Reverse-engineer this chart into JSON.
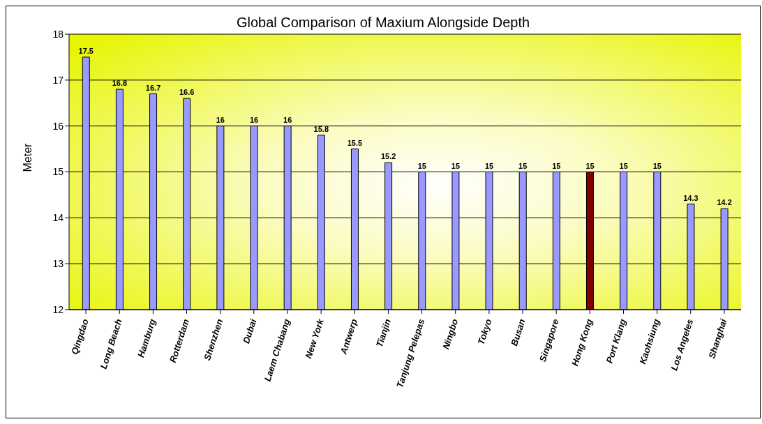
{
  "chart_data": {
    "type": "bar",
    "title": "Global Comparison of Maxium Alongside Depth",
    "ylabel": "Meter",
    "categories": [
      "Qingdao",
      "Long Beach",
      "Hamburg",
      "Rotterdam",
      "Shenzhen",
      "Dubai",
      "Laem Chabang",
      "New York",
      "Antwerp",
      "Tianjin",
      "Tanjung Pelepas",
      "Ningbo",
      "Tokyo",
      "Busan",
      "Singapore",
      "Hong Kong",
      "Port Klang",
      "Kaohsiung",
      "Los Angeles",
      "Shanghai"
    ],
    "values": [
      17.5,
      16.8,
      16.7,
      16.6,
      16,
      16,
      16,
      15.8,
      15.5,
      15.2,
      15,
      15,
      15,
      15,
      15,
      15,
      15,
      15,
      14.3,
      14.2
    ],
    "colors": [
      "#9999ff",
      "#9999ff",
      "#9999ff",
      "#9999ff",
      "#9999ff",
      "#9999ff",
      "#9999ff",
      "#9999ff",
      "#9999ff",
      "#9999ff",
      "#9999ff",
      "#9999ff",
      "#9999ff",
      "#9999ff",
      "#9999ff",
      "#800000",
      "#9999ff",
      "#9999ff",
      "#9999ff",
      "#9999ff"
    ],
    "ylim": [
      12,
      18
    ],
    "yticks": [
      12,
      13,
      14,
      15,
      16,
      17,
      18
    ],
    "grid": "y",
    "data_labels": true,
    "legend": false
  }
}
